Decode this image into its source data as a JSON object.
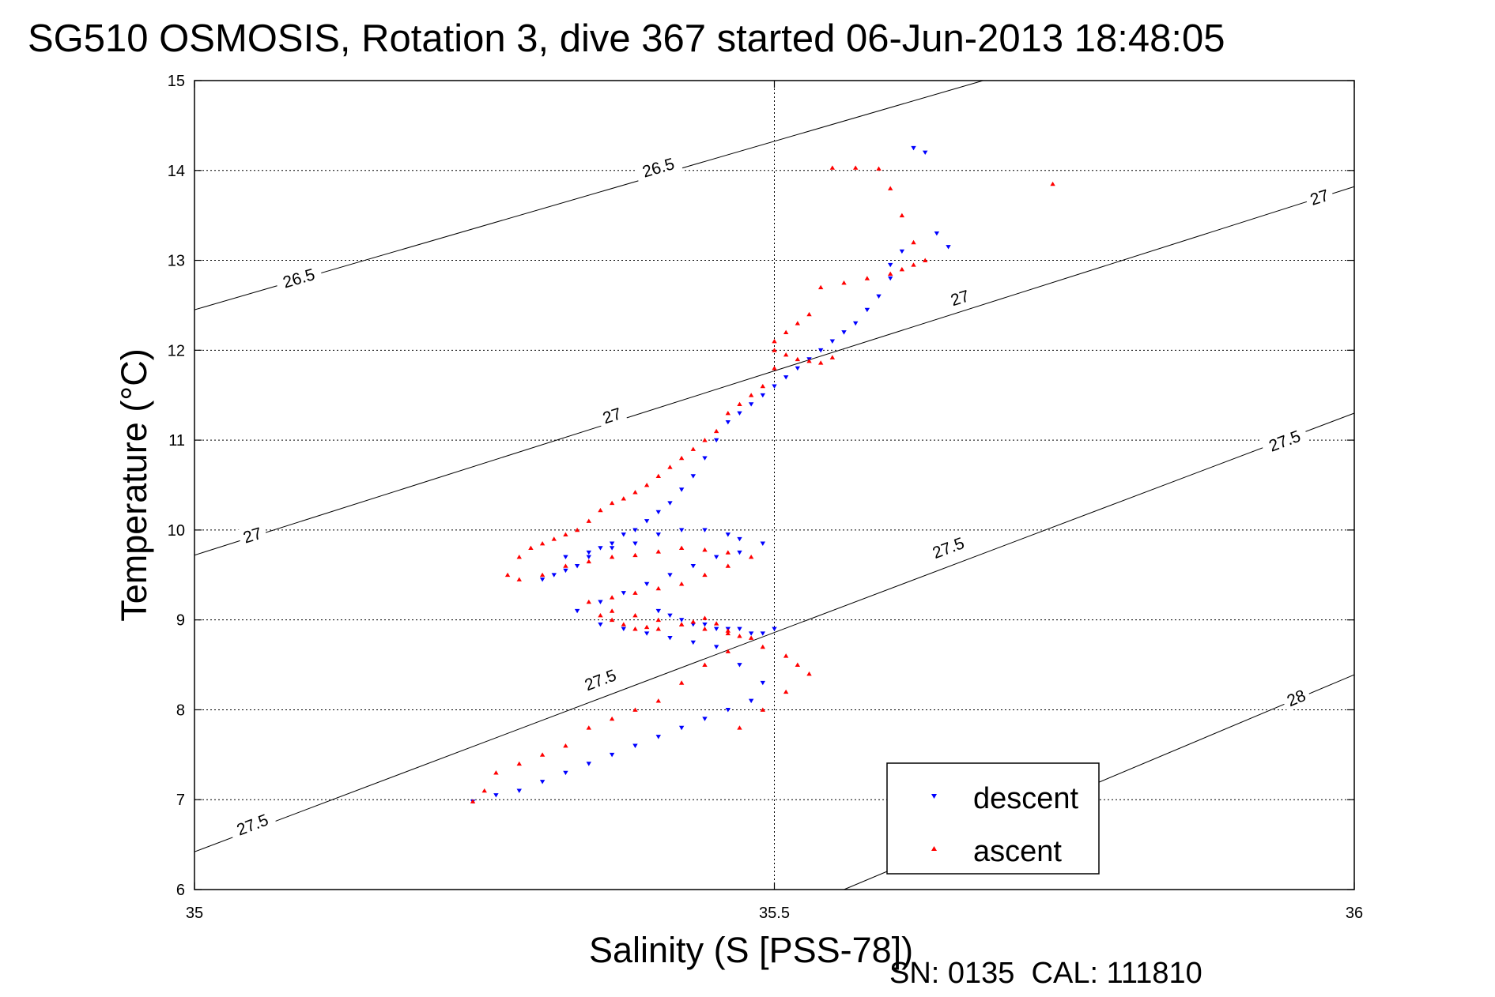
{
  "chart_data": {
    "type": "scatter",
    "title": "SG510 OSMOSIS, Rotation 3, dive 367 started 06-Jun-2013 18:48:05",
    "xlabel": "Salinity (S [PSS-78])",
    "ylabel": "Temperature (°C)",
    "xlim": [
      35,
      36
    ],
    "ylim": [
      6,
      15
    ],
    "x_ticks": [
      {
        "value": 35,
        "label": "35"
      },
      {
        "value": 35.5,
        "label": "35.5"
      },
      {
        "value": 36,
        "label": "36"
      }
    ],
    "y_ticks": [
      {
        "value": 6,
        "label": "6"
      },
      {
        "value": 7,
        "label": "7"
      },
      {
        "value": 8,
        "label": "8"
      },
      {
        "value": 9,
        "label": "9"
      },
      {
        "value": 10,
        "label": "10"
      },
      {
        "value": 11,
        "label": "11"
      },
      {
        "value": 12,
        "label": "12"
      },
      {
        "value": 13,
        "label": "13"
      },
      {
        "value": 14,
        "label": "14"
      },
      {
        "value": 15,
        "label": "15"
      }
    ],
    "grid": true,
    "legend_position": "bottom-right",
    "density_contours": [
      {
        "label": "26.5",
        "line": [
          [
            35,
            12.45
          ],
          [
            35.68,
            15
          ]
        ],
        "label_positions": [
          [
            35.09,
            12.8
          ],
          [
            35.4,
            14.03
          ]
        ]
      },
      {
        "label": "27",
        "line": [
          [
            35,
            9.72
          ],
          [
            36,
            13.82
          ]
        ],
        "label_positions": [
          [
            35.05,
            9.94
          ],
          [
            35.36,
            11.27
          ],
          [
            35.66,
            12.58
          ],
          [
            35.97,
            13.7
          ]
        ]
      },
      {
        "label": "27.5",
        "line": [
          [
            35,
            6.42
          ],
          [
            36,
            11.3
          ]
        ],
        "label_positions": [
          [
            35.05,
            6.72
          ],
          [
            35.35,
            8.33
          ],
          [
            35.65,
            9.8
          ],
          [
            35.94,
            10.99
          ]
        ]
      },
      {
        "label": "28",
        "line": [
          [
            35.56,
            6
          ],
          [
            36,
            8.39
          ]
        ],
        "label_positions": [
          [
            35.95,
            8.13
          ]
        ]
      }
    ],
    "series": [
      {
        "name": "descent",
        "color": "#0000ff",
        "marker": "triangle-down",
        "x": [
          35.62,
          35.63,
          35.64,
          35.65,
          35.61,
          35.6,
          35.6,
          35.59,
          35.58,
          35.57,
          35.56,
          35.55,
          35.54,
          35.53,
          35.52,
          35.51,
          35.5,
          35.49,
          35.48,
          35.47,
          35.46,
          35.45,
          35.44,
          35.43,
          35.42,
          35.41,
          35.4,
          35.39,
          35.38,
          35.37,
          35.36,
          35.35,
          35.34,
          35.33,
          35.32,
          35.31,
          35.3,
          35.32,
          35.34,
          35.36,
          35.38,
          35.4,
          35.42,
          35.44,
          35.46,
          35.47,
          35.49,
          35.47,
          35.45,
          35.43,
          35.41,
          35.39,
          35.37,
          35.35,
          35.33,
          35.35,
          35.37,
          35.39,
          35.41,
          35.43,
          35.45,
          35.47,
          35.49,
          35.48,
          35.46,
          35.44,
          35.42,
          35.4,
          35.38,
          35.36,
          35.34,
          35.32,
          35.3,
          35.28,
          35.26,
          35.24,
          35.4,
          35.41,
          35.42,
          35.43,
          35.44,
          35.45,
          35.46,
          35.47,
          35.48,
          35.49,
          35.5
        ],
        "y": [
          14.25,
          14.2,
          13.3,
          13.15,
          13.1,
          12.95,
          12.8,
          12.6,
          12.45,
          12.3,
          12.2,
          12.1,
          12.0,
          11.9,
          11.8,
          11.7,
          11.6,
          11.5,
          11.4,
          11.3,
          11.2,
          11.0,
          10.8,
          10.6,
          10.45,
          10.3,
          10.2,
          10.1,
          10.0,
          9.95,
          9.85,
          9.8,
          9.7,
          9.6,
          9.55,
          9.5,
          9.45,
          9.7,
          9.75,
          9.8,
          9.85,
          9.95,
          10.0,
          10.0,
          9.95,
          9.9,
          9.85,
          9.75,
          9.7,
          9.6,
          9.5,
          9.4,
          9.3,
          9.2,
          9.1,
          8.95,
          8.9,
          8.85,
          8.8,
          8.75,
          8.7,
          8.5,
          8.3,
          8.1,
          8.0,
          7.9,
          7.8,
          7.7,
          7.6,
          7.5,
          7.4,
          7.3,
          7.2,
          7.1,
          7.05,
          6.98,
          9.1,
          9.05,
          9.0,
          8.95,
          8.95,
          8.9,
          8.9,
          8.9,
          8.85,
          8.85,
          8.9
        ]
      },
      {
        "name": "ascent",
        "color": "#ff0000",
        "marker": "triangle-up",
        "x": [
          35.55,
          35.57,
          35.59,
          35.6,
          35.61,
          35.62,
          35.63,
          35.62,
          35.61,
          35.6,
          35.58,
          35.56,
          35.54,
          35.53,
          35.52,
          35.51,
          35.5,
          35.5,
          35.51,
          35.52,
          35.53,
          35.54,
          35.55,
          35.5,
          35.49,
          35.48,
          35.47,
          35.46,
          35.45,
          35.44,
          35.43,
          35.42,
          35.41,
          35.4,
          35.39,
          35.38,
          35.37,
          35.36,
          35.35,
          35.34,
          35.33,
          35.32,
          35.31,
          35.3,
          35.29,
          35.28,
          35.27,
          35.28,
          35.3,
          35.32,
          35.34,
          35.36,
          35.38,
          35.4,
          35.42,
          35.44,
          35.46,
          35.48,
          35.46,
          35.44,
          35.42,
          35.4,
          35.38,
          35.36,
          35.34,
          35.36,
          35.38,
          35.4,
          35.42,
          35.44,
          35.46,
          35.48,
          35.46,
          35.44,
          35.42,
          35.4,
          35.38,
          35.36,
          35.34,
          35.32,
          35.3,
          35.28,
          35.26,
          35.25,
          35.24,
          35.35,
          35.36,
          35.37,
          35.38,
          35.39,
          35.4,
          35.42,
          35.43,
          35.44,
          35.45,
          35.46,
          35.47,
          35.49,
          35.51,
          35.52,
          35.53,
          35.51,
          35.49,
          35.47,
          35.74
        ],
        "y": [
          14.03,
          14.03,
          14.02,
          13.8,
          13.5,
          13.2,
          13.0,
          12.95,
          12.9,
          12.85,
          12.8,
          12.75,
          12.7,
          12.4,
          12.3,
          12.2,
          12.1,
          12.0,
          11.95,
          11.9,
          11.88,
          11.86,
          11.92,
          11.8,
          11.6,
          11.5,
          11.4,
          11.3,
          11.1,
          11.0,
          10.9,
          10.8,
          10.7,
          10.6,
          10.5,
          10.42,
          10.35,
          10.3,
          10.22,
          10.1,
          10.0,
          9.95,
          9.9,
          9.85,
          9.8,
          9.7,
          9.5,
          9.45,
          9.5,
          9.6,
          9.65,
          9.7,
          9.72,
          9.76,
          9.8,
          9.78,
          9.75,
          9.7,
          9.6,
          9.5,
          9.4,
          9.35,
          9.3,
          9.25,
          9.2,
          9.1,
          9.05,
          9.0,
          8.95,
          8.9,
          8.85,
          8.8,
          8.65,
          8.5,
          8.3,
          8.1,
          8.0,
          7.9,
          7.8,
          7.6,
          7.5,
          7.4,
          7.3,
          7.1,
          6.98,
          9.05,
          9.0,
          8.95,
          8.9,
          8.92,
          8.9,
          8.95,
          8.98,
          9.02,
          8.96,
          8.88,
          8.82,
          8.7,
          8.6,
          8.5,
          8.4,
          8.2,
          8.0,
          7.8,
          13.85
        ]
      }
    ],
    "footer": "SN: 0135  CAL: 111810"
  }
}
